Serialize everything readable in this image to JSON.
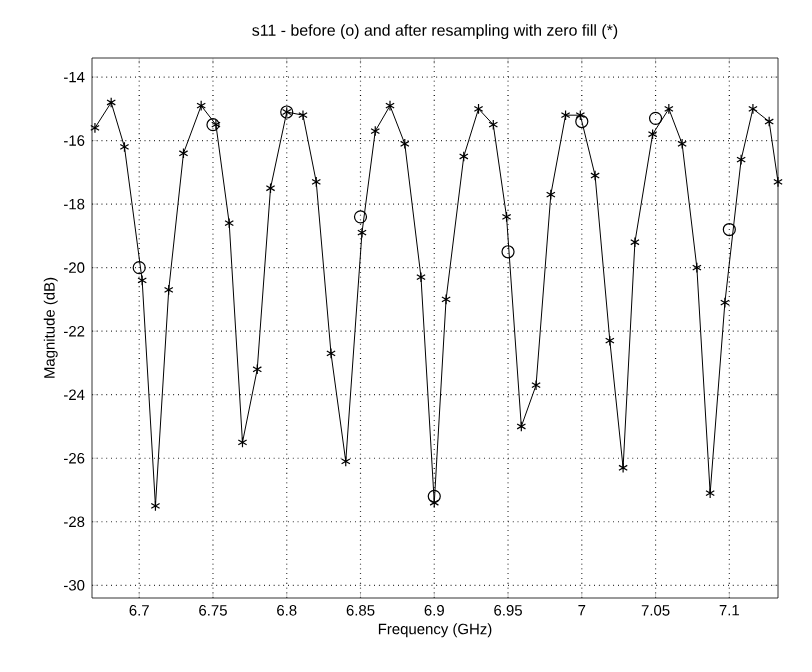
{
  "chart_data": {
    "type": "line",
    "title": "s11 - before (o) and after resampling with zero fill (*)",
    "xlabel": "Frequency (GHz)",
    "ylabel": "Magnitude (dB)",
    "series": [
      {
        "color": "#000000",
        "marker": "cross",
        "line_style": "solid",
        "x": [
          6.67,
          6.681,
          6.69,
          6.702,
          6.711,
          6.72,
          6.73,
          6.742,
          6.752,
          6.761,
          6.77,
          6.78,
          6.789,
          6.8,
          6.811,
          6.82,
          6.83,
          6.84,
          6.851,
          6.86,
          6.87,
          6.88,
          6.891,
          6.9,
          6.908,
          6.92,
          6.93,
          6.94,
          6.949,
          6.959,
          6.969,
          6.979,
          6.989,
          6.999,
          7.009,
          7.019,
          7.028,
          7.036,
          7.048,
          7.059,
          7.068,
          7.078,
          7.087,
          7.097,
          7.108,
          7.116,
          7.127,
          7.133
        ],
        "values": [
          -15.6,
          -14.8,
          -16.2,
          -20.4,
          -27.5,
          -20.7,
          -16.4,
          -14.9,
          -15.5,
          -18.6,
          -25.5,
          -23.2,
          -17.5,
          -15.1,
          -15.2,
          -17.3,
          -22.7,
          -26.1,
          -18.9,
          -15.7,
          -14.9,
          -16.1,
          -20.3,
          -27.4,
          -21.0,
          -16.5,
          -15.0,
          -15.5,
          -18.4,
          -25.0,
          -23.7,
          -17.7,
          -15.2,
          -15.2,
          -17.1,
          -22.3,
          -26.3,
          -19.2,
          -15.8,
          -15.0,
          -16.1,
          -20.0,
          -27.1,
          -21.1,
          -16.6,
          -15.0,
          -15.4,
          -17.3
        ]
      },
      {
        "type": "scatter",
        "color": "#000000",
        "marker": "circle",
        "x": [
          6.7,
          6.75,
          6.8,
          6.85,
          6.9,
          6.95,
          7.0,
          7.05,
          7.1
        ],
        "values": [
          -20.0,
          -15.5,
          -15.1,
          -18.4,
          -27.2,
          -19.5,
          -15.4,
          -15.3,
          -18.8
        ]
      }
    ],
    "xlim": [
      6.668,
      7.133
    ],
    "ylim": [
      -30.4,
      -13.4
    ],
    "xticks": [
      6.7,
      6.75,
      6.8,
      6.85,
      6.9,
      6.95,
      7,
      7.05,
      7.1
    ],
    "yticks": [
      -30,
      -28,
      -26,
      -24,
      -22,
      -20,
      -18,
      -16,
      -14
    ],
    "grid": true
  }
}
